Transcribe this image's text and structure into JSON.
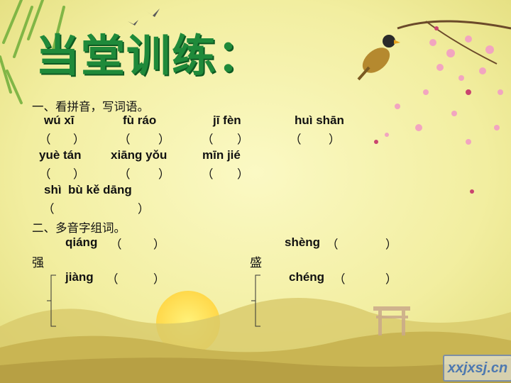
{
  "title": "当堂训练：",
  "section1": {
    "heading": "一、看拼音，写词语。",
    "row1": {
      "a": "wú xī",
      "b": "fù ráo",
      "c": "jī fèn",
      "d": "huì shān"
    },
    "row2": {
      "a": "yuè tán",
      "b": "xiāng yǒu",
      "c": "mīn jié"
    },
    "row3": {
      "a": "shì  bù kě dāng"
    },
    "paren_open": "（",
    "paren_close": "）"
  },
  "section2": {
    "heading": "二、多音字组词。",
    "char1": "强",
    "char1_py1": "qiáng",
    "char1_py2": "jiàng",
    "char2": "盛",
    "char2_py1": "shèng",
    "char2_py2": "chéng"
  },
  "watermark": "xxjxsj.cn",
  "colors": {
    "title": "#1f8a3a",
    "background": "#f4f1a6",
    "sun": "#ffe15a"
  }
}
